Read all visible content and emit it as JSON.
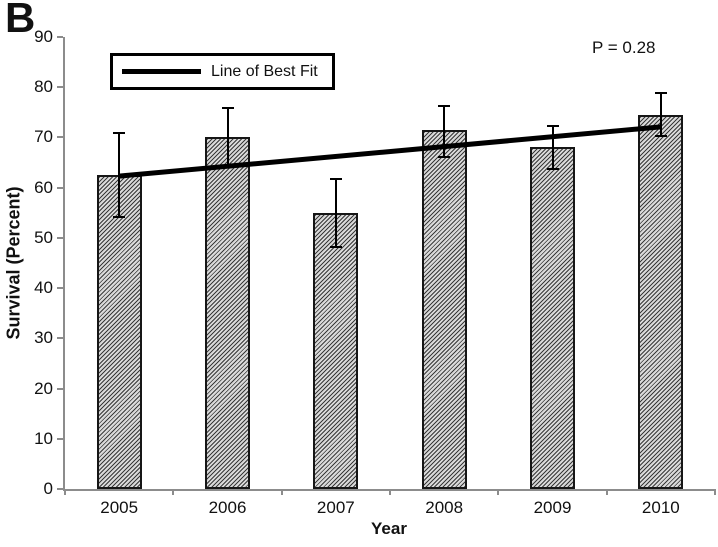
{
  "panel_label": "B",
  "annotation": "P = 0.28",
  "legend": {
    "label": "Line of Best Fit"
  },
  "chart_data": {
    "type": "bar",
    "title": "",
    "xlabel": "Year",
    "ylabel": "Survival (Percent)",
    "categories": [
      "2005",
      "2006",
      "2007",
      "2008",
      "2009",
      "2010"
    ],
    "values": [
      62.5,
      70,
      55,
      71.5,
      68,
      74.5
    ],
    "error_low": [
      54,
      64,
      48,
      66,
      63.5,
      70
    ],
    "error_high": [
      71,
      76,
      62,
      76.5,
      72.5,
      79
    ],
    "ylim": [
      0,
      90
    ],
    "yticks": [
      0,
      10,
      20,
      30,
      40,
      50,
      60,
      70,
      80,
      90
    ],
    "grid": false,
    "bar_style": "diagonal-hatch",
    "legend_position": "top-left-inside",
    "annotation": "P = 0.28",
    "best_fit_line": {
      "label": "Line of Best Fit",
      "start": {
        "x": "2005",
        "y": 62.3
      },
      "end": {
        "x": "2010",
        "y": 72.1
      }
    }
  }
}
